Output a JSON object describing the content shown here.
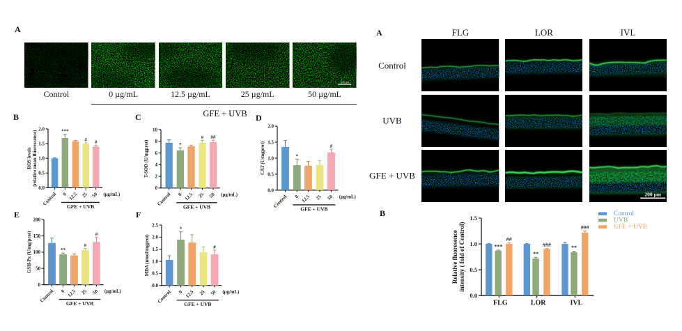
{
  "figure_bg": "#ffffff",
  "palette": {
    "control_blue": "#5E97CF",
    "uvb_green": "#8EA97A",
    "gfe_orange": "#F0A468",
    "yellow": "#EAE57F",
    "pink": "#F5A8B1",
    "axis_black": "#1a1a1a",
    "sig_color": "#333333"
  },
  "left_panel_a": {
    "label": "A",
    "image_labels": [
      "Control",
      "0 µg/mL",
      "12.5 µg/mL",
      "25 µg/mL",
      "50 µg/mL"
    ],
    "group_label": "GFE + UVB",
    "scale_bar_text": "200 µm"
  },
  "right_panel_a": {
    "label": "A",
    "column_headers": [
      "FLG",
      "LOR",
      "IVL"
    ],
    "row_labels": [
      "Control",
      "UVB",
      "GFE + UVB"
    ],
    "scale_bar_text": "200 µm"
  },
  "right_panel_b": {
    "label": "B"
  },
  "chart_data": [
    {
      "panel": "B",
      "type": "bar",
      "ylabel_lines": [
        "ROS levels",
        "(relative mean fluorescence)"
      ],
      "categories": [
        "Control",
        "0",
        "12.5",
        "25",
        "50"
      ],
      "values": [
        1.0,
        1.69,
        1.58,
        1.5,
        1.4
      ],
      "errors": [
        0.02,
        0.13,
        0.03,
        0.03,
        0.05
      ],
      "sig": [
        "",
        "***",
        "",
        "#",
        "#"
      ],
      "ylim": [
        0,
        2.0
      ],
      "yticks": [
        "0.0",
        "0.5",
        "1.0",
        "1.5",
        "2.0"
      ],
      "x_unit": "(µg/mL)",
      "group_label": "GFE + UVB",
      "bar_colors": [
        "control_blue",
        "uvb_green",
        "gfe_orange",
        "yellow",
        "pink"
      ]
    },
    {
      "panel": "C",
      "type": "bar",
      "ylabel_lines": [
        "T-SOD (U/mgprot)"
      ],
      "categories": [
        "Control",
        "0",
        "12.5",
        "25",
        "50"
      ],
      "values": [
        7.75,
        6.45,
        7.15,
        7.75,
        7.85
      ],
      "errors": [
        0.5,
        0.45,
        0.2,
        0.4,
        0.35
      ],
      "sig": [
        "",
        "*",
        "",
        "#",
        "##"
      ],
      "ylim": [
        0,
        10
      ],
      "yticks": [
        "0",
        "2",
        "4",
        "6",
        "8",
        "10"
      ],
      "x_unit": "(µg/mL)",
      "group_label": "GFE + UVB",
      "bar_colors": [
        "control_blue",
        "uvb_green",
        "gfe_orange",
        "yellow",
        "pink"
      ]
    },
    {
      "panel": "D",
      "type": "bar",
      "ylabel_lines": [
        "CAT (U/mgprot)"
      ],
      "categories": [
        "Control",
        "0",
        "12.5",
        "25",
        "50"
      ],
      "values": [
        1.35,
        0.78,
        0.76,
        0.79,
        1.18
      ],
      "errors": [
        0.2,
        0.19,
        0.14,
        0.13,
        0.1
      ],
      "sig": [
        "",
        "*",
        "",
        "",
        "#"
      ],
      "ylim": [
        0,
        2.0
      ],
      "yticks": [
        "0.0",
        "0.5",
        "1.0",
        "1.5",
        "2.0"
      ],
      "x_unit": "(µg/mL)",
      "group_label": "GFE + UVB",
      "bar_colors": [
        "control_blue",
        "uvb_green",
        "gfe_orange",
        "yellow",
        "pink"
      ]
    },
    {
      "panel": "E",
      "type": "bar",
      "ylabel_lines": [
        "GSH-Px (U/mg/prot)"
      ],
      "categories": [
        "Control",
        "0",
        "12.5",
        "25",
        "50"
      ],
      "values": [
        128,
        93,
        90,
        106,
        131
      ],
      "errors": [
        15,
        4,
        5,
        5,
        15
      ],
      "sig": [
        "",
        "**",
        "",
        "#",
        "#"
      ],
      "ylim": [
        0,
        200
      ],
      "yticks": [
        "0",
        "50",
        "100",
        "150",
        "200"
      ],
      "x_unit": "(µg/mL)",
      "group_label": "GFE + UVB",
      "bar_colors": [
        "control_blue",
        "uvb_green",
        "gfe_orange",
        "yellow",
        "pink"
      ]
    },
    {
      "panel": "F",
      "type": "bar",
      "ylabel_lines": [
        "MDA (nmol/mgprot)"
      ],
      "categories": [
        "Control",
        "0",
        "12.5",
        "25",
        "50"
      ],
      "values": [
        1.06,
        1.9,
        1.78,
        1.38,
        1.29
      ],
      "errors": [
        0.17,
        0.32,
        0.32,
        0.22,
        0.17
      ],
      "sig": [
        "",
        "*",
        "",
        "",
        "#"
      ],
      "ylim": [
        0,
        2.5
      ],
      "yticks": [
        "0.0",
        "0.5",
        "1.0",
        "1.5",
        "2.0",
        "2.5"
      ],
      "x_unit": "(µg/mL)",
      "group_label": "GFE + UVB",
      "bar_colors": [
        "control_blue",
        "uvb_green",
        "gfe_orange",
        "yellow",
        "pink"
      ]
    },
    {
      "panel": "B",
      "type": "grouped_bar",
      "ylabel_lines": [
        "Relative fluoresence",
        "intensity ( fold of Control)"
      ],
      "categories": [
        "FLG",
        "LOR",
        "IVL"
      ],
      "series": [
        {
          "name": "Control",
          "color_key": "control_blue",
          "values": [
            1.0,
            1.0,
            1.0
          ],
          "errors": [
            0.01,
            0.01,
            0.03
          ],
          "sig": [
            "",
            "",
            ""
          ]
        },
        {
          "name": "UVB",
          "color_key": "uvb_green",
          "values": [
            0.87,
            0.72,
            0.84
          ],
          "errors": [
            0.01,
            0.02,
            0.02
          ],
          "sig": [
            "***",
            "**",
            "**"
          ]
        },
        {
          "name": "GFE + UVB",
          "color_key": "gfe_orange",
          "values": [
            1.0,
            0.9,
            1.22
          ],
          "errors": [
            0.02,
            0.01,
            0.03
          ],
          "sig": [
            "##",
            "###",
            "###"
          ]
        }
      ],
      "ylim": [
        0,
        1.5
      ],
      "yticks": [
        "0.0",
        "0.5",
        "1.0",
        "1.5"
      ],
      "legend": [
        "Control",
        "UVB",
        "GFE + UVB"
      ],
      "legend_position": "top-right"
    }
  ]
}
